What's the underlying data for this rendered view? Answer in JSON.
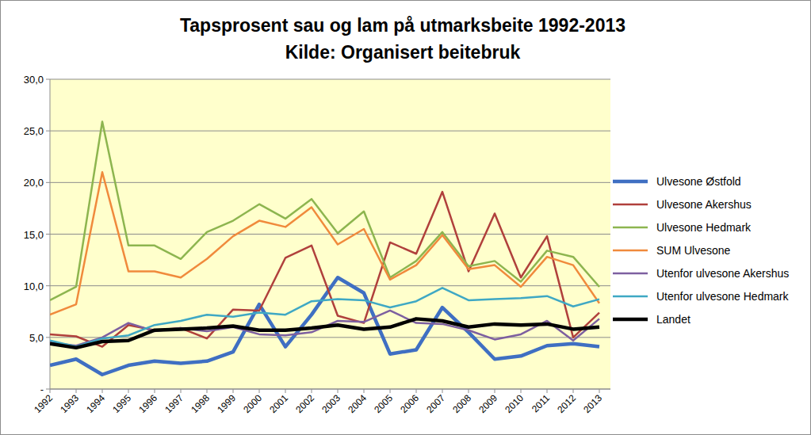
{
  "chart_data": {
    "type": "line",
    "title": "Tapsprosent sau og lam på utmarksbeite 1992-2013",
    "subtitle": "Kilde: Organisert beitebruk",
    "categories": [
      "1992",
      "1993",
      "1994",
      "1995",
      "1996",
      "1997",
      "1998",
      "1999",
      "2000",
      "2001",
      "2002",
      "2003",
      "2004",
      "2005",
      "2006",
      "2007",
      "2008",
      "2009",
      "2010",
      "2011",
      "2012",
      "2013"
    ],
    "series": [
      {
        "name": "Ulvesone Østfold",
        "color": "#3f6fc2",
        "values": [
          2.3,
          2.9,
          1.4,
          2.3,
          2.7,
          2.5,
          2.7,
          3.6,
          8.2,
          4.1,
          7.2,
          10.8,
          9.3,
          3.4,
          3.8,
          7.9,
          5.5,
          2.9,
          3.2,
          4.2,
          4.4,
          4.1
        ]
      },
      {
        "name": "Ulvesone Akershus",
        "color": "#b0403c",
        "values": [
          5.3,
          5.1,
          4.1,
          6.2,
          5.7,
          5.9,
          4.9,
          7.7,
          7.6,
          12.7,
          13.9,
          7.1,
          6.4,
          14.2,
          13.1,
          19.1,
          11.4,
          17.0,
          10.8,
          14.8,
          5.0,
          7.4
        ]
      },
      {
        "name": "Ulvesone Hedmark",
        "color": "#8db54f",
        "values": [
          8.6,
          9.9,
          25.9,
          13.9,
          13.9,
          12.6,
          15.2,
          16.3,
          17.9,
          16.5,
          18.4,
          15.1,
          17.2,
          10.8,
          12.4,
          15.2,
          11.9,
          12.4,
          10.4,
          13.4,
          12.8,
          9.9
        ]
      },
      {
        "name": "SUM Ulvesone",
        "color": "#f08a3c",
        "values": [
          7.2,
          8.2,
          21.0,
          11.4,
          11.4,
          10.8,
          12.6,
          14.8,
          16.3,
          15.7,
          17.6,
          14.0,
          15.5,
          10.6,
          12.0,
          14.9,
          11.6,
          12.0,
          9.9,
          12.8,
          12.0,
          8.3
        ]
      },
      {
        "name": "Utenfor ulvesone Akershus",
        "color": "#7d5fa0",
        "values": [
          4.5,
          4.2,
          5.0,
          6.4,
          5.6,
          5.9,
          5.6,
          6.0,
          5.3,
          5.2,
          5.5,
          6.6,
          6.5,
          7.6,
          6.4,
          6.3,
          5.7,
          4.8,
          5.3,
          6.6,
          4.7,
          6.8
        ]
      },
      {
        "name": "Utenfor ulvesone Hedmark",
        "color": "#3fa8c4",
        "values": [
          4.7,
          4.1,
          4.9,
          5.2,
          6.2,
          6.6,
          7.2,
          7.0,
          7.4,
          7.2,
          8.5,
          8.7,
          8.6,
          7.9,
          8.5,
          9.8,
          8.6,
          8.7,
          8.8,
          9.0,
          8.0,
          8.7
        ]
      },
      {
        "name": "Landet",
        "color": "#000000",
        "values": [
          4.4,
          4.0,
          4.6,
          4.7,
          5.7,
          5.8,
          5.9,
          6.1,
          5.7,
          5.7,
          5.9,
          6.2,
          5.8,
          6.0,
          6.8,
          6.6,
          6.0,
          6.3,
          6.2,
          6.3,
          5.8,
          6.0
        ]
      }
    ],
    "ylim": [
      0,
      30
    ],
    "yticks": [
      {
        "value": 0,
        "label": "-"
      },
      {
        "value": 5,
        "label": "5,0"
      },
      {
        "value": 10,
        "label": "10,0"
      },
      {
        "value": 15,
        "label": "15,0"
      },
      {
        "value": 20,
        "label": "20,0"
      },
      {
        "value": 25,
        "label": "25,0"
      },
      {
        "value": 30,
        "label": "30,0"
      }
    ],
    "grid": true,
    "legend": "right"
  }
}
